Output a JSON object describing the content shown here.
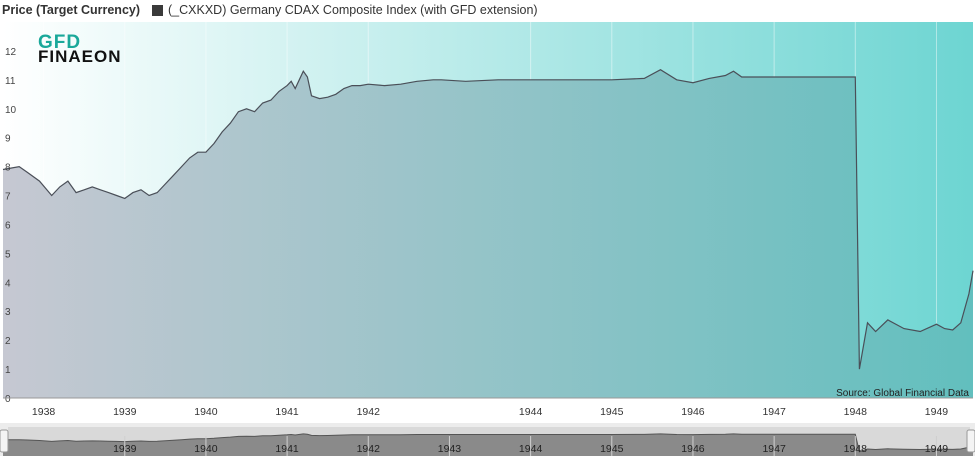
{
  "legend": {
    "title": "Price (Target Currency)",
    "series_label": "(_CXKXD) Germany CDAX Composite Index (with GFD extension)",
    "series_color": "#3a3a3a"
  },
  "logo": {
    "line1": "GFD",
    "line2": "FINAEON",
    "color": "#1aa89a"
  },
  "source": "Source: Global Financial Data",
  "colors": {
    "area_left": "#c6c8d2",
    "area_right": "#62bfbe",
    "bg_left": "#ffffff",
    "bg_right": "#6dd5d2",
    "line": "#4a4f58"
  },
  "chart_data": {
    "type": "area",
    "title": "",
    "xlabel": "",
    "ylabel": "",
    "ylim": [
      0,
      13
    ],
    "yticks": [
      0,
      1,
      2,
      3,
      4,
      5,
      6,
      7,
      8,
      9,
      10,
      11,
      12
    ],
    "xticks": [
      "1938",
      "1939",
      "1940",
      "1941",
      "1942",
      "1944",
      "1945",
      "1946",
      "1947",
      "1948",
      "1949"
    ],
    "xtick_positions": [
      1938.0,
      1939.0,
      1940.0,
      1941.0,
      1942.0,
      1944.0,
      1945.0,
      1946.0,
      1947.0,
      1948.0,
      1949.0
    ],
    "xlim": [
      1937.5,
      1949.45
    ],
    "grid": true,
    "series": [
      {
        "name": "(_CXKXD) Germany CDAX Composite Index (with GFD extension)",
        "x": [
          1937.5,
          1937.7,
          1937.8,
          1937.95,
          1938.1,
          1938.2,
          1938.3,
          1938.4,
          1938.5,
          1938.6,
          1938.7,
          1938.8,
          1938.9,
          1939.0,
          1939.1,
          1939.2,
          1939.3,
          1939.4,
          1939.5,
          1939.6,
          1939.7,
          1939.8,
          1939.9,
          1940.0,
          1940.1,
          1940.2,
          1940.3,
          1940.4,
          1940.5,
          1940.6,
          1940.7,
          1940.8,
          1940.9,
          1941.0,
          1941.05,
          1941.1,
          1941.2,
          1941.25,
          1941.3,
          1941.4,
          1941.5,
          1941.6,
          1941.7,
          1941.8,
          1941.9,
          1942.0,
          1942.2,
          1942.4,
          1942.6,
          1942.8,
          1942.9,
          1943.2,
          1943.6,
          1944.0,
          1944.5,
          1945.0,
          1945.4,
          1945.6,
          1945.8,
          1946.0,
          1946.2,
          1946.4,
          1946.5,
          1946.6,
          1946.8,
          1947.0,
          1947.5,
          1947.9,
          1948.0,
          1948.05,
          1948.15,
          1948.25,
          1948.4,
          1948.6,
          1948.8,
          1949.0,
          1949.1,
          1949.2,
          1949.3,
          1949.4,
          1949.45
        ],
        "y": [
          7.9,
          8.0,
          7.8,
          7.5,
          7.0,
          7.3,
          7.5,
          7.1,
          7.2,
          7.3,
          7.2,
          7.1,
          7.0,
          6.9,
          7.1,
          7.2,
          7.0,
          7.1,
          7.4,
          7.7,
          8.0,
          8.3,
          8.5,
          8.5,
          8.8,
          9.2,
          9.5,
          9.9,
          10.0,
          9.9,
          10.2,
          10.3,
          10.6,
          10.8,
          10.95,
          10.7,
          11.3,
          11.1,
          10.45,
          10.35,
          10.4,
          10.5,
          10.7,
          10.8,
          10.8,
          10.85,
          10.8,
          10.85,
          10.95,
          11.0,
          11.0,
          10.95,
          11.0,
          11.0,
          11.0,
          11.0,
          11.05,
          11.35,
          11.0,
          10.9,
          11.05,
          11.15,
          11.3,
          11.1,
          11.1,
          11.1,
          11.1,
          11.1,
          11.1,
          1.0,
          2.6,
          2.3,
          2.7,
          2.4,
          2.3,
          2.55,
          2.4,
          2.35,
          2.6,
          3.6,
          4.4
        ]
      }
    ]
  },
  "navigator": {
    "labels": [
      "1939",
      "1940",
      "1941",
      "1942",
      "1943",
      "1944",
      "1945",
      "1946",
      "1947",
      "1948",
      "1949"
    ],
    "positions": [
      1939.0,
      1940.0,
      1941.0,
      1942.0,
      1943.0,
      1944.0,
      1945.0,
      1946.0,
      1947.0,
      1948.0,
      1949.0
    ]
  }
}
